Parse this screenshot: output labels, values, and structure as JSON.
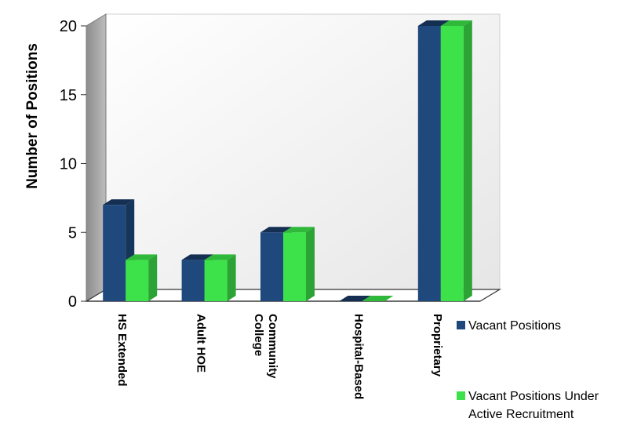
{
  "chart_data": {
    "type": "bar",
    "title": "",
    "xlabel": "",
    "ylabel": "Number of Positions",
    "ylim": [
      0,
      20
    ],
    "yticks": [
      "0",
      "5",
      "10",
      "15",
      "20"
    ],
    "categories": [
      "HS Extended",
      "Adult HOE",
      "Community College",
      "Hospital-Based",
      "Proprietary"
    ],
    "series": [
      {
        "name": "Vacant Positions",
        "values": [
          7,
          3,
          5,
          0,
          20
        ],
        "color": "#1F497D"
      },
      {
        "name": "Vacant Positions Under Active Recruitment",
        "values": [
          3,
          3,
          5,
          0,
          20
        ],
        "color": "#3DE24A"
      }
    ],
    "grid": false,
    "legend_position": "right",
    "style": "3d-clustered-column"
  }
}
